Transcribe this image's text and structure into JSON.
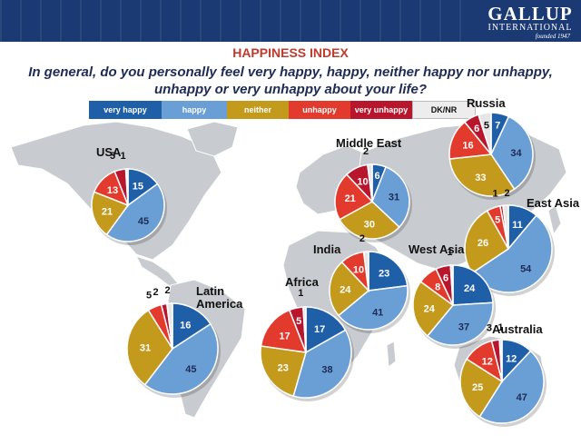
{
  "header": {
    "logo": {
      "line1": "GALLUP",
      "line2": "INTERNATIONAL",
      "line3": "founded 1947"
    }
  },
  "title": "HAPPINESS INDEX",
  "question": "In general, do you personally feel very happy, happy, neither happy nor unhappy, unhappy or very unhappy about your life?",
  "colors": {
    "very_happy": "#1f5fa8",
    "happy": "#6a9fd6",
    "neither": "#c49a1c",
    "unhappy": "#e23a2d",
    "very_unhappy": "#b8162d",
    "dk_nr": "#e6e6e6",
    "map": "#c8cbcf",
    "header": "#1b3a73"
  },
  "legend": [
    "very happy",
    "happy",
    "neither",
    "unhappy",
    "very unhappy",
    "DK/NR"
  ],
  "chart_data": {
    "type": "pie",
    "categories": [
      "very happy",
      "happy",
      "neither",
      "unhappy",
      "very unhappy",
      "DK/NR"
    ],
    "series": [
      {
        "name": "USA",
        "values": [
          15,
          45,
          21,
          13,
          5,
          1
        ],
        "labels": [
          "15",
          "45",
          "21",
          "13",
          "5",
          "1"
        ]
      },
      {
        "name": "Latin America",
        "values": [
          16,
          45,
          31,
          5,
          2,
          2
        ],
        "labels": [
          "16",
          "45",
          "31",
          "5",
          "2",
          "2"
        ]
      },
      {
        "name": "Middle East",
        "values": [
          6,
          31,
          30,
          21,
          10,
          2
        ],
        "labels": [
          "6",
          "31",
          "30",
          "21",
          "10",
          "2"
        ]
      },
      {
        "name": "Russia",
        "values": [
          7,
          34,
          33,
          16,
          6,
          5
        ],
        "labels": [
          "7",
          "34",
          "33",
          "16",
          "6",
          "5"
        ]
      },
      {
        "name": "East Asia",
        "values": [
          11,
          54,
          26,
          5,
          1,
          2
        ],
        "labels": [
          "11",
          "54",
          "26",
          "5",
          "1",
          "2"
        ]
      },
      {
        "name": "India",
        "values": [
          23,
          41,
          24,
          10,
          0,
          2
        ],
        "labels": [
          "23",
          "41",
          "24",
          "10",
          "",
          "2"
        ]
      },
      {
        "name": "West Asia",
        "values": [
          24,
          37,
          24,
          8,
          6,
          1
        ],
        "labels": [
          "24",
          "37",
          "24",
          "8",
          "6",
          "1"
        ]
      },
      {
        "name": "Africa",
        "values": [
          17,
          38,
          23,
          17,
          5,
          1
        ],
        "labels": [
          "17",
          "38",
          "23",
          "17",
          "5",
          "1"
        ]
      },
      {
        "name": "Australia",
        "values": [
          12,
          47,
          25,
          12,
          3,
          1
        ],
        "labels": [
          "12",
          "47",
          "25",
          "12",
          "3",
          "1"
        ]
      }
    ]
  }
}
